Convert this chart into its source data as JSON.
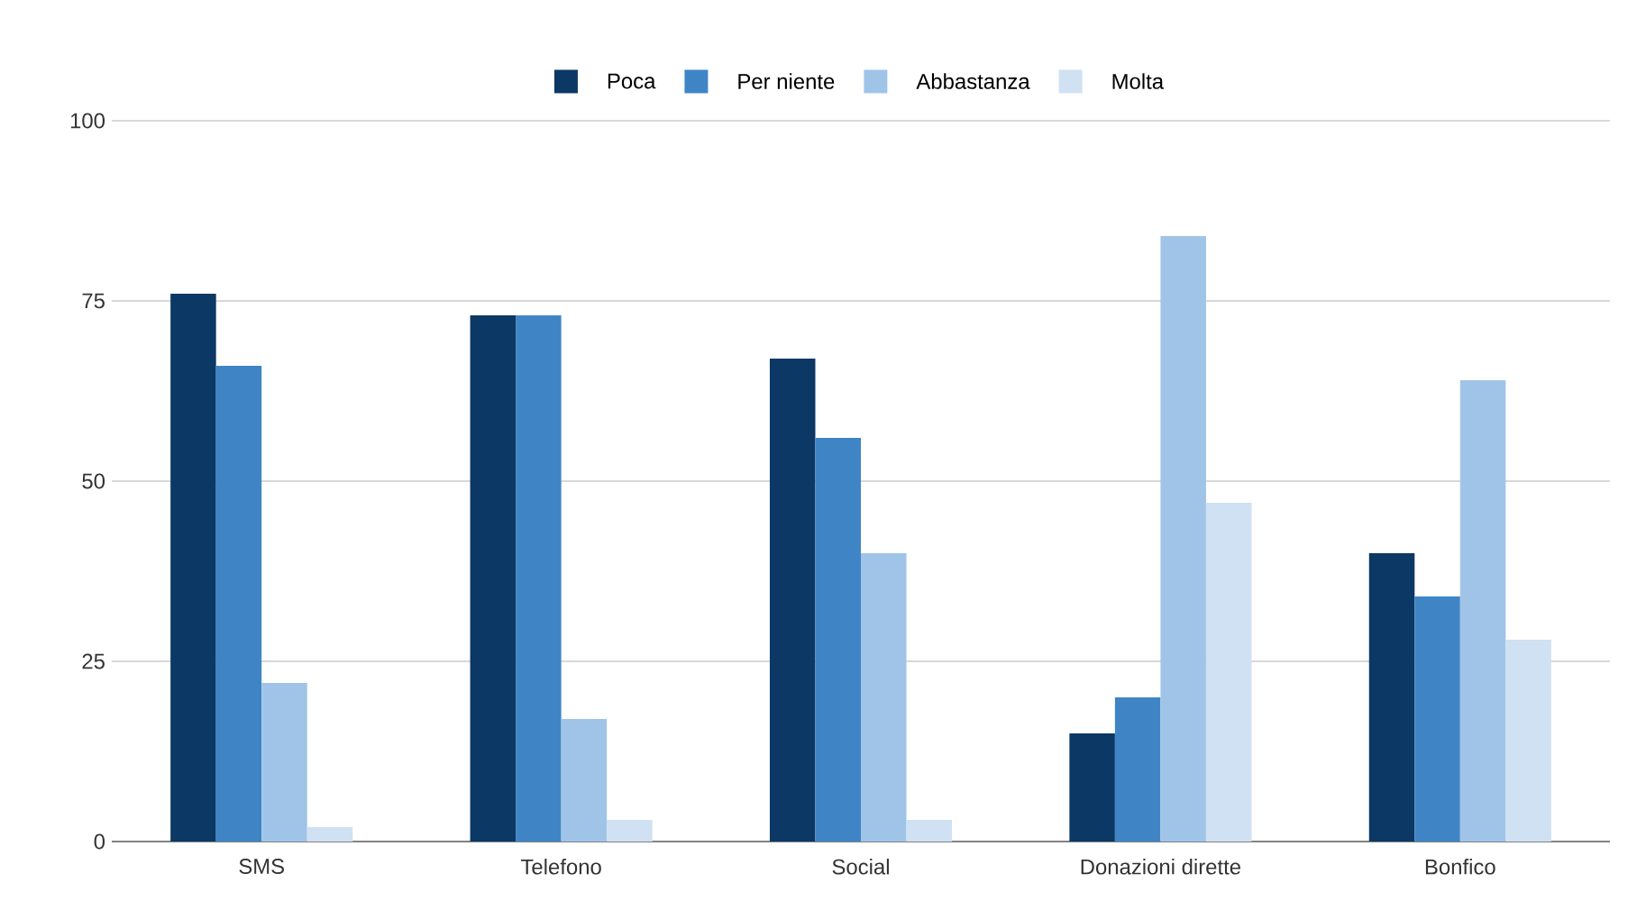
{
  "chart_data": {
    "type": "bar",
    "categories": [
      "SMS",
      "Telefono",
      "Social",
      "Donazioni dirette",
      "Bonfico"
    ],
    "series": [
      {
        "name": "Poca",
        "color": "#0b3864",
        "values": [
          76,
          73,
          67,
          15,
          40
        ]
      },
      {
        "name": "Per niente",
        "color": "#3f85c6",
        "values": [
          66,
          73,
          56,
          20,
          34
        ]
      },
      {
        "name": "Abbastanza",
        "color": "#a0c4e8",
        "values": [
          22,
          17,
          40,
          84,
          64
        ]
      },
      {
        "name": "Molta",
        "color": "#cfe1f3",
        "values": [
          2,
          3,
          3,
          47,
          28
        ]
      }
    ],
    "ylim": [
      0,
      100
    ],
    "yticks": [
      0,
      25,
      50,
      75,
      100
    ],
    "grid": "y",
    "legend": "top"
  }
}
